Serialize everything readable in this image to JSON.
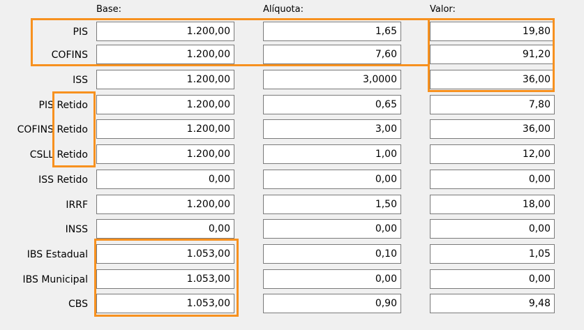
{
  "headers": {
    "base": "Base:",
    "aliquota": "Alíquota:",
    "valor": "Valor:"
  },
  "rows": [
    {
      "label": "PIS",
      "base": "1.200,00",
      "aliquota": "1,65",
      "valor": "19,80"
    },
    {
      "label": "COFINS",
      "base": "1.200,00",
      "aliquota": "7,60",
      "valor": "91,20"
    },
    {
      "label": "ISS",
      "base": "1.200,00",
      "aliquota": "3,0000",
      "valor": "36,00"
    },
    {
      "label": "PIS Retido",
      "base": "1.200,00",
      "aliquota": "0,65",
      "valor": "7,80"
    },
    {
      "label": "COFINS Retido",
      "base": "1.200,00",
      "aliquota": "3,00",
      "valor": "36,00"
    },
    {
      "label": "CSLL Retido",
      "base": "1.200,00",
      "aliquota": "1,00",
      "valor": "12,00"
    },
    {
      "label": "ISS Retido",
      "base": "0,00",
      "aliquota": "0,00",
      "valor": "0,00"
    },
    {
      "label": "IRRF",
      "base": "1.200,00",
      "aliquota": "1,50",
      "valor": "18,00"
    },
    {
      "label": "INSS",
      "base": "0,00",
      "aliquota": "0,00",
      "valor": "0,00"
    },
    {
      "label": "IBS Estadual",
      "base": "1.053,00",
      "aliquota": "0,10",
      "valor": "1,05"
    },
    {
      "label": "IBS Municipal",
      "base": "1.053,00",
      "aliquota": "0,00",
      "valor": "0,00"
    },
    {
      "label": "CBS",
      "base": "1.053,00",
      "aliquota": "0,90",
      "valor": "9,48"
    }
  ],
  "colors": {
    "highlight": "#f7911f",
    "field_background": "#ffffff",
    "field_border": "#7a7a7a",
    "form_background": "#f0f0f0"
  }
}
